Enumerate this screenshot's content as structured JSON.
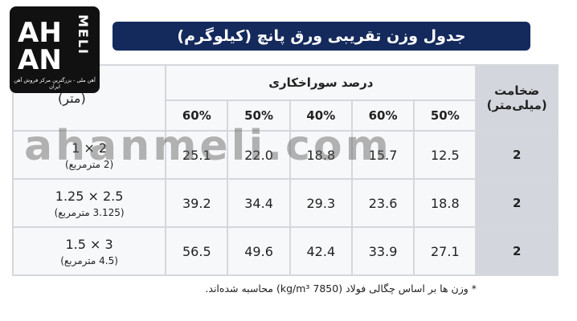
{
  "logo": {
    "line1": "AH",
    "line2": "AN",
    "vertical": "MELI",
    "tagline": "آهن ملی - بزرگترین مرکز فروش آهن ایران"
  },
  "header": {
    "title": "جدول وزن تقریبی ورق پانچ (کیلوگرم)"
  },
  "watermark": "ahanmeli.com",
  "table": {
    "thickness_header": "ضخامت (میلی‌متر)",
    "group_header": "درصد سوراخکاری",
    "dimension_header": "(متر)",
    "percent_headers": [
      "50%",
      "60%",
      "40%",
      "50%",
      "60%"
    ],
    "rows": [
      {
        "thickness": "2",
        "values": [
          "12.5",
          "15.7",
          "18.8",
          "22.0",
          "25.1"
        ],
        "size": "2 × 1",
        "area": "(2 مترمربع)"
      },
      {
        "thickness": "2",
        "values": [
          "18.8",
          "23.6",
          "29.3",
          "34.4",
          "39.2"
        ],
        "size": "2.5 × 1.25",
        "area": "(3.125 مترمربع)"
      },
      {
        "thickness": "2",
        "values": [
          "27.1",
          "33.9",
          "42.4",
          "49.6",
          "56.5"
        ],
        "size": "3 × 1.5",
        "area": "(4.5 مترمربع)"
      }
    ]
  },
  "footnote": "* وزن ها بر اساس چگالی فولاد (7850 kg/m³) محاسبه شده‌اند."
}
